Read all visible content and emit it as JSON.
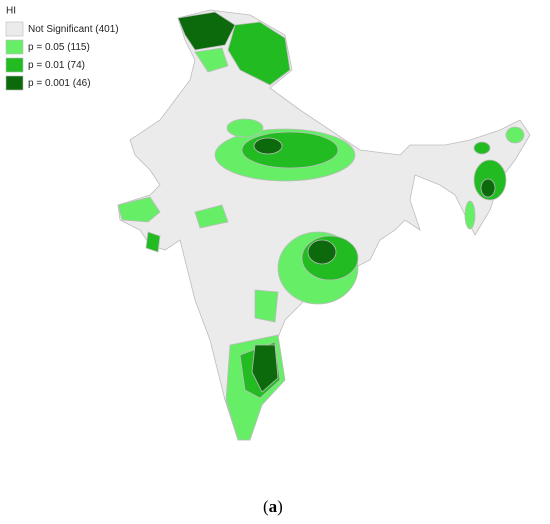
{
  "legend": {
    "title": "HI",
    "items": [
      {
        "label": "Not Significant (401)",
        "color": "#ebebeb"
      },
      {
        "label": "p = 0.05 (115)",
        "color": "#66ee66"
      },
      {
        "label": "p = 0.01 (74)",
        "color": "#22bb22"
      },
      {
        "label": "p = 0.001 (46)",
        "color": "#0c6a0c"
      }
    ]
  },
  "caption": {
    "open": "(",
    "letter": "a",
    "close": ")"
  }
}
